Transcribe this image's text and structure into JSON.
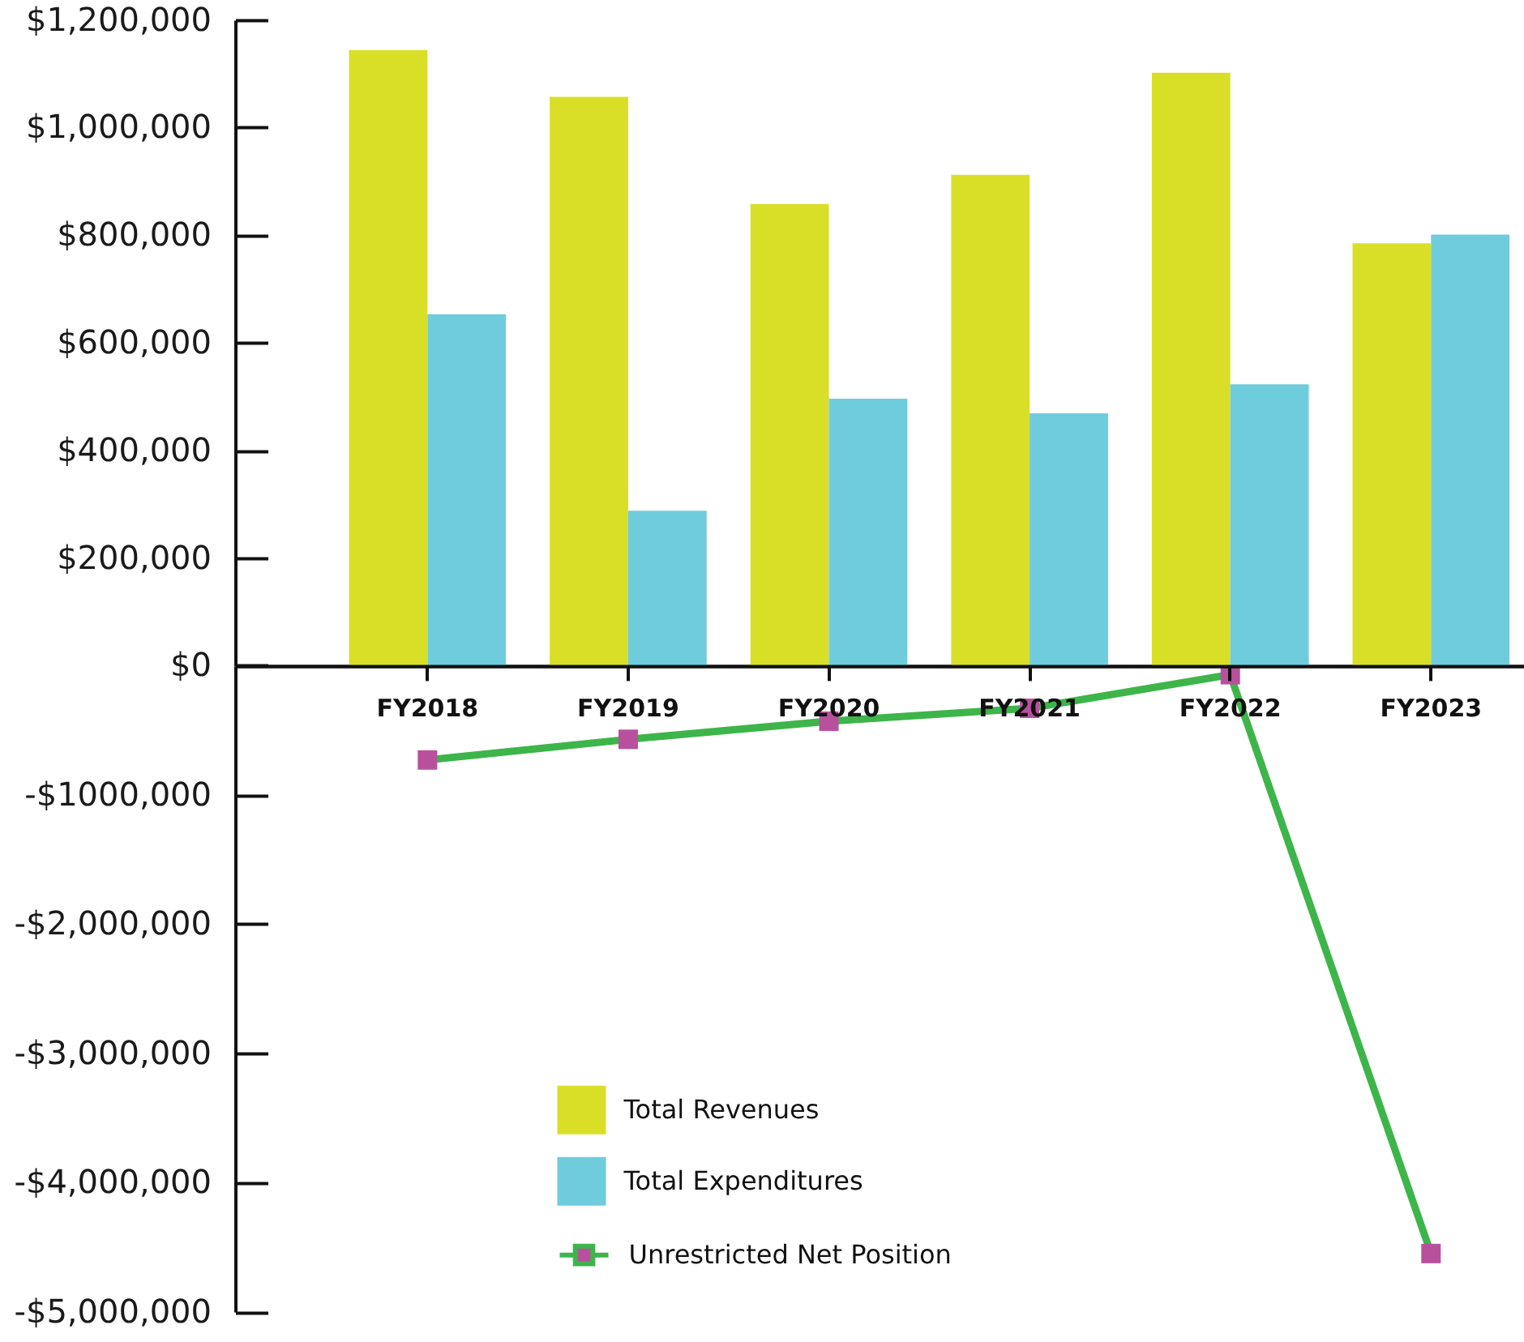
{
  "chart_data": [
    {
      "type": "bar",
      "categories": [
        "FY2018",
        "FY2019",
        "FY2020",
        "FY2021",
        "FY2022",
        "FY2023"
      ],
      "series": [
        {
          "name": "Total Revenues",
          "color": "#d9df27",
          "values": [
            1144000,
            1057000,
            858000,
            912000,
            1102000,
            785000
          ]
        },
        {
          "name": "Total Expenditures",
          "color": "#6fccdd",
          "values": [
            653000,
            288000,
            496000,
            469000,
            523000,
            801000
          ]
        }
      ],
      "ylim": [
        0,
        1200000
      ],
      "yticks": [
        {
          "value": 0,
          "label": "$0"
        },
        {
          "value": 200000,
          "label": "$200,000"
        },
        {
          "value": 400000,
          "label": "$400,000"
        },
        {
          "value": 600000,
          "label": "$600,000"
        },
        {
          "value": 800000,
          "label": "$800,000"
        },
        {
          "value": 1000000,
          "label": "$1,000,000"
        },
        {
          "value": 1200000,
          "label": "$1,200,000"
        }
      ],
      "legend": "bottom left"
    },
    {
      "type": "line",
      "categories": [
        null,
        null,
        null,
        null,
        null,
        null
      ],
      "series": [
        {
          "name": "Unrestricted Net Position",
          "color": "#3db54a",
          "colors": [
            "#b9509e",
            "#b9509e",
            "#b9509e",
            "#b9509e",
            "#b9509e",
            "#b9509e"
          ],
          "values": [
            -730000,
            -570000,
            -430000,
            -330000,
            -70000,
            -4550000
          ]
        }
      ],
      "ylim": [
        -5000000,
        0
      ],
      "yticks": [
        {
          "value": -5000000,
          "label": "-$5,000,000"
        },
        {
          "value": -4000000,
          "label": "-$4,000,000"
        },
        {
          "value": -3000000,
          "label": "-$3,000,000"
        },
        {
          "value": -2000000,
          "label": "-$2,000,000"
        },
        {
          "value": -1000000,
          "label": "-$1000,000"
        }
      ],
      "marker": "square",
      "line_style": "solid",
      "legend": "bottom left"
    }
  ]
}
